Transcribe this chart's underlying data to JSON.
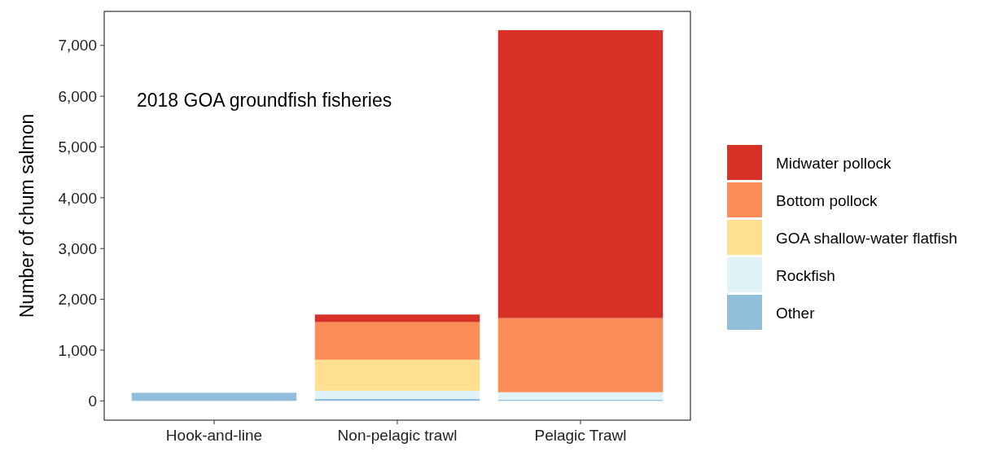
{
  "chart_data": {
    "type": "bar",
    "stacked": true,
    "ylabel": "Number of chum salmon",
    "annotations": [
      "2018 GOA groundfish fisheries"
    ],
    "categories": [
      "Hook-and-line",
      "Non-pelagic trawl",
      "Pelagic Trawl"
    ],
    "series": [
      {
        "name": "Other",
        "color": "#91bfdb",
        "values": [
          160,
          40,
          20
        ]
      },
      {
        "name": "Rockfish",
        "color": "#e0f3f8",
        "values": [
          0,
          160,
          150
        ]
      },
      {
        "name": "GOA shallow-water flatfish",
        "color": "#fee090",
        "values": [
          0,
          610,
          0
        ]
      },
      {
        "name": "Bottom pollock",
        "color": "#fc8d59",
        "values": [
          0,
          740,
          1460
        ]
      },
      {
        "name": "Midwater pollock",
        "color": "#d73027",
        "values": [
          0,
          150,
          5670
        ]
      }
    ],
    "ylim": [
      -380,
      7670
    ],
    "yticks": [
      0,
      {
        "value": 1000,
        "label": "1,000"
      },
      {
        "value": 2000,
        "label": "2,000"
      },
      {
        "value": 3000,
        "label": "3,000"
      },
      {
        "value": 4000,
        "label": "4,000"
      },
      {
        "value": 5000,
        "label": "5,000"
      },
      {
        "value": 6000,
        "label": "6,000"
      },
      {
        "value": 7000,
        "label": "7,000"
      }
    ],
    "grid": false,
    "legend": "right"
  }
}
